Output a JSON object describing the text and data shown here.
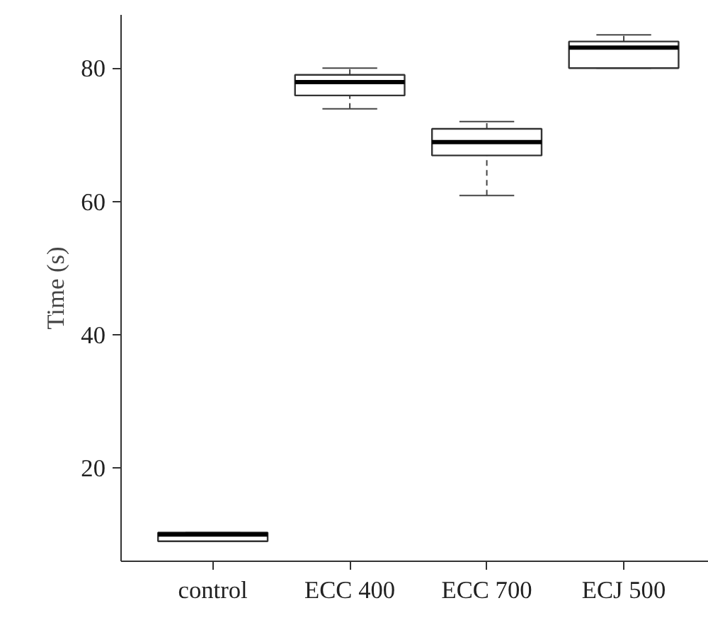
{
  "chart_data": {
    "type": "box",
    "ylabel": "Time (s)",
    "categories": [
      "control",
      "ECC 400",
      "ECC 700",
      "ECJ 500"
    ],
    "boxes": [
      {
        "low": 9,
        "q1": 9,
        "median": 10,
        "q3": 10.3,
        "high": 10.3
      },
      {
        "low": 73.9,
        "q1": 75.9,
        "median": 77.9,
        "q3": 79,
        "high": 80
      },
      {
        "low": 60.9,
        "q1": 66.9,
        "median": 68.9,
        "q3": 70.9,
        "high": 72
      },
      {
        "low": 80,
        "q1": 80,
        "median": 83.1,
        "q3": 84,
        "high": 85
      }
    ],
    "ylim": [
      6,
      88
    ],
    "yticks": [
      20,
      40,
      60,
      80
    ],
    "grid": false
  }
}
